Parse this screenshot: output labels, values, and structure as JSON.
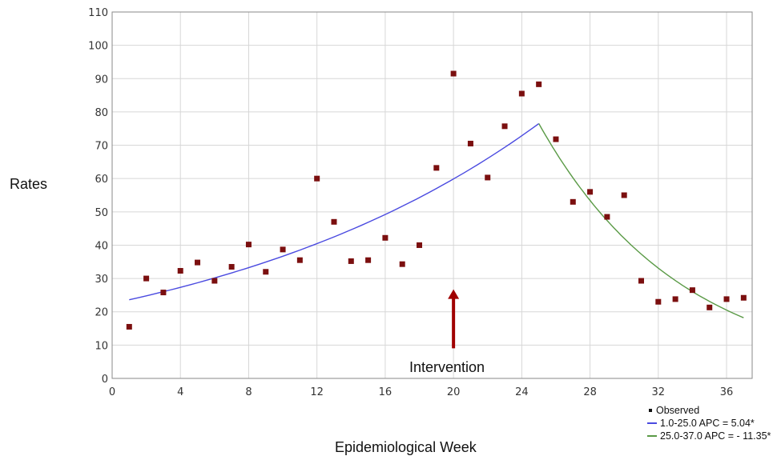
{
  "chart_data": {
    "type": "scatter",
    "title": "",
    "xlabel": "Epidemiological Week",
    "ylabel": "Rates",
    "xlim": [
      0,
      37.5
    ],
    "ylim": [
      0,
      110
    ],
    "xticks": [
      0,
      4,
      8,
      12,
      16,
      20,
      24,
      28,
      32,
      36
    ],
    "yticks": [
      0,
      10,
      20,
      30,
      40,
      50,
      60,
      70,
      80,
      90,
      100,
      110
    ],
    "grid": true,
    "legend_position": "bottom-right",
    "annotation": {
      "text": "Intervention",
      "x": 20,
      "arrow_to_y": 27,
      "color": "#a00000"
    },
    "series": [
      {
        "name": "Observed",
        "kind": "points",
        "color": "#7b0f0f",
        "points": [
          [
            1,
            15.5
          ],
          [
            2,
            30
          ],
          [
            3,
            25.8
          ],
          [
            4,
            32.3
          ],
          [
            5,
            34.8
          ],
          [
            6,
            29.3
          ],
          [
            7,
            33.5
          ],
          [
            8,
            40.2
          ],
          [
            9,
            32
          ],
          [
            10,
            38.7
          ],
          [
            11,
            35.5
          ],
          [
            12,
            60
          ],
          [
            13,
            47
          ],
          [
            14,
            35.2
          ],
          [
            15,
            35.5
          ],
          [
            16,
            42.2
          ],
          [
            17,
            34.3
          ],
          [
            18,
            40
          ],
          [
            19,
            63.2
          ],
          [
            20,
            91.5
          ],
          [
            21,
            70.5
          ],
          [
            22,
            60.3
          ],
          [
            23,
            75.7
          ],
          [
            24,
            85.5
          ],
          [
            25,
            88.3
          ],
          [
            26,
            71.8
          ],
          [
            27,
            53
          ],
          [
            28,
            56
          ],
          [
            29,
            48.5
          ],
          [
            30,
            55
          ],
          [
            31,
            29.3
          ],
          [
            32,
            23
          ],
          [
            33,
            23.8
          ],
          [
            34,
            26.5
          ],
          [
            35,
            21.3
          ],
          [
            36,
            23.8
          ],
          [
            37,
            24.2
          ]
        ]
      },
      {
        "name": "1.0-25.0 APC = 5.04*",
        "kind": "fit",
        "color": "#4a4ae0",
        "x_start": 1,
        "x_end": 25,
        "y_start": 23.6,
        "y_end": 76.5
      },
      {
        "name": "25.0-37.0 APC = - 11.35*",
        "kind": "fit",
        "color": "#5a9a46",
        "x_start": 25,
        "x_end": 37,
        "y_start": 76.5,
        "y_end": 18.2
      }
    ]
  }
}
